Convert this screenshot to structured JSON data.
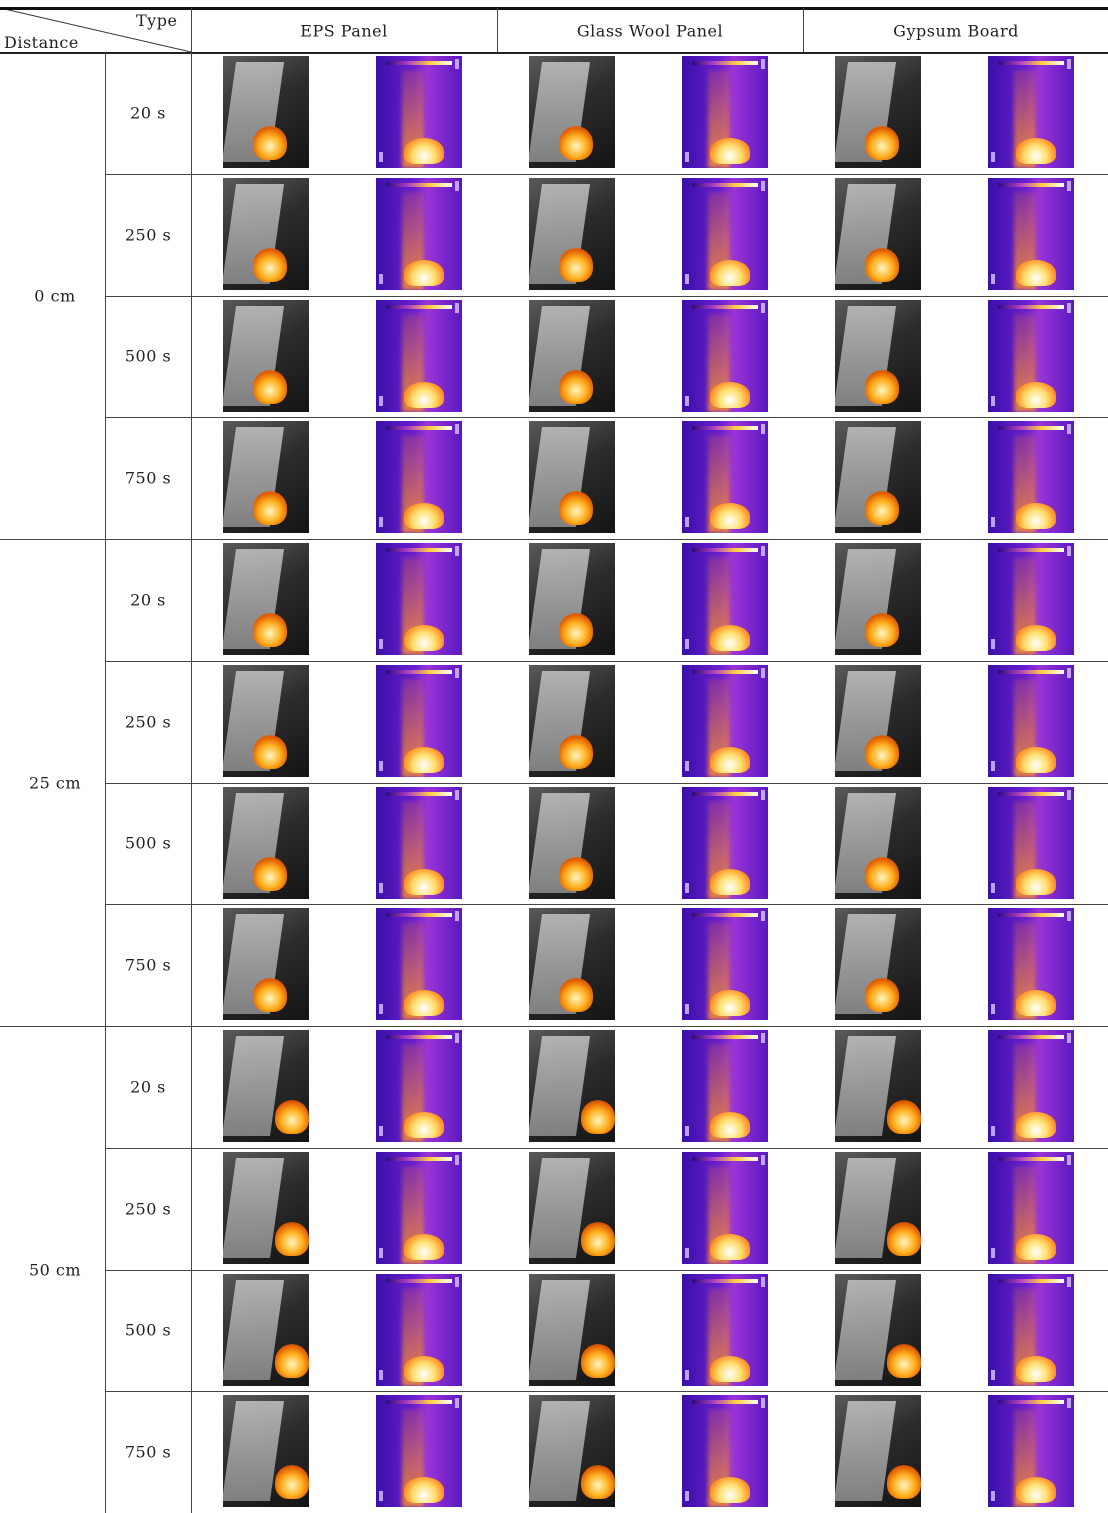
{
  "header": {
    "type_label": "Type",
    "distance_label": "Distance"
  },
  "columns": [
    "EPS Panel",
    "Glass Wool Panel",
    "Gypsum Board"
  ],
  "distances": [
    "0 cm",
    "25 cm",
    "50 cm"
  ],
  "times": [
    "20 s",
    "250 s",
    "500 s",
    "750 s"
  ]
}
